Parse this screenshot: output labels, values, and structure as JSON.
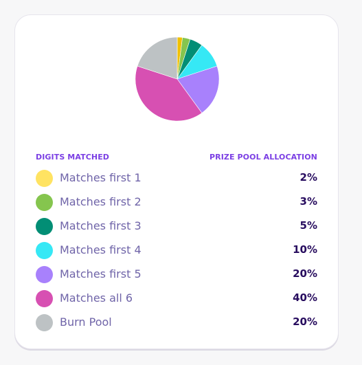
{
  "headers": {
    "left": "DIGITS MATCHED",
    "right": "PRIZE POOL ALLOCATION"
  },
  "rows": [
    {
      "label": "Matches first 1",
      "pct": "2%",
      "value": 2,
      "color": "#ffe362"
    },
    {
      "label": "Matches first 2",
      "pct": "3%",
      "value": 3,
      "color": "#85c54e"
    },
    {
      "label": "Matches first 3",
      "pct": "5%",
      "value": 5,
      "color": "#028e75"
    },
    {
      "label": "Matches first 4",
      "pct": "10%",
      "value": 10,
      "color": "#36e8f5"
    },
    {
      "label": "Matches first 5",
      "pct": "20%",
      "value": 20,
      "color": "#a881fc"
    },
    {
      "label": "Matches all 6",
      "pct": "40%",
      "value": 40,
      "color": "#d750b2"
    },
    {
      "label": "Burn Pool",
      "pct": "20%",
      "value": 20,
      "color": "#bdc2c4"
    }
  ],
  "pie_accent_first_slice": "#f0c000",
  "chart_data": {
    "type": "pie",
    "categories": [
      "Matches first 1",
      "Matches first 2",
      "Matches first 3",
      "Matches first 4",
      "Matches first 5",
      "Matches all 6",
      "Burn Pool"
    ],
    "values": [
      2,
      3,
      5,
      10,
      20,
      40,
      20
    ]
  }
}
